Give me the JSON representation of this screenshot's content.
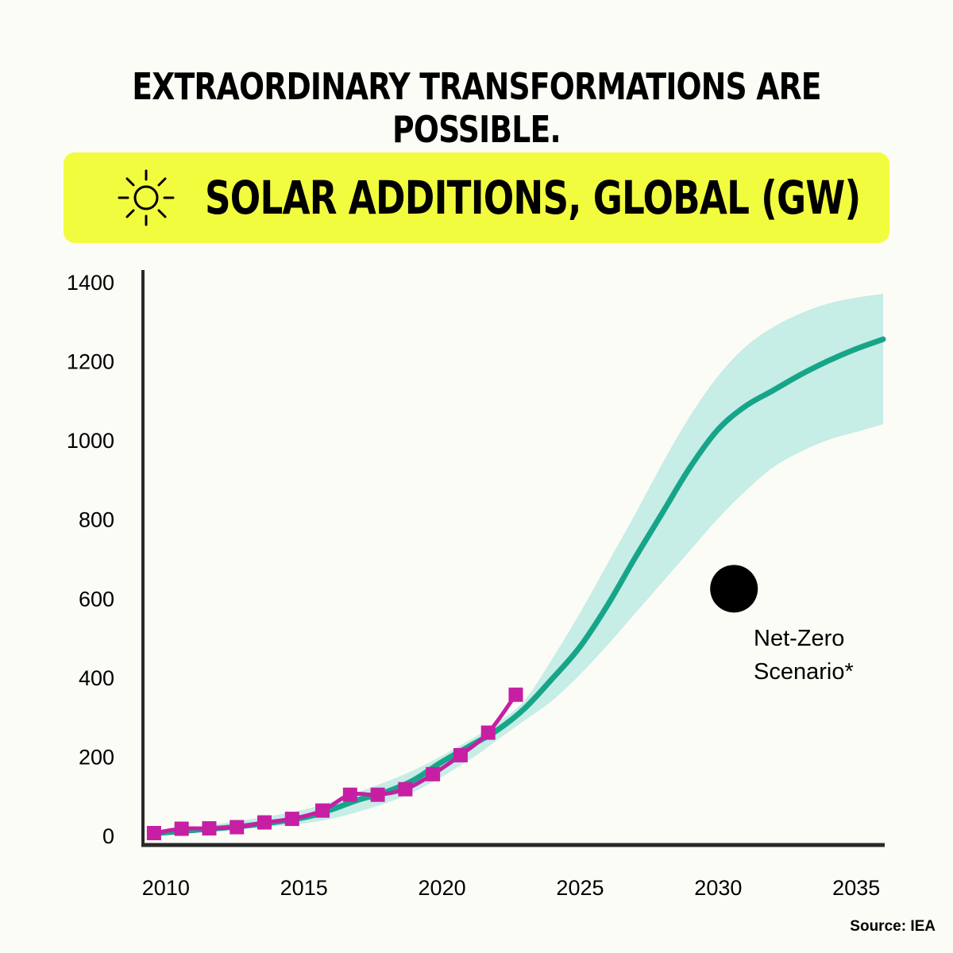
{
  "headline": "EXTRAORDINARY TRANSFORMATIONS ARE POSSIBLE.",
  "banner": {
    "icon": "sun-icon",
    "title": "SOLAR ADDITIONS, GLOBAL (GW)",
    "color": "#f2fc3f"
  },
  "source": "Source: IEA",
  "chart_data": {
    "type": "line",
    "title": "SOLAR ADDITIONS, GLOBAL (GW)",
    "xlabel": "",
    "ylabel": "",
    "xlim": [
      2009.2,
      2036
    ],
    "ylim": [
      0,
      1400
    ],
    "x_ticks": [
      "2010",
      "2015",
      "2020",
      "2025",
      "2030",
      "2035"
    ],
    "y_ticks": [
      "0",
      "200",
      "400",
      "600",
      "800",
      "1000",
      "1200",
      "1400"
    ],
    "grid": false,
    "series": [
      {
        "color": "#c61fa4",
        "marker": "square",
        "x": [
          2009.6,
          2010.6,
          2011.6,
          2012.6,
          2013.6,
          2014.6,
          2015.7,
          2016.7,
          2017.7,
          2018.7,
          2019.7,
          2020.7,
          2021.7,
          2022.7
        ],
        "y": [
          6,
          17,
          18,
          21,
          33,
          42,
          63,
          103,
          103,
          117,
          155,
          203,
          260,
          356
        ]
      },
      {
        "color": "#17a589",
        "x": [
          2009.6,
          2011,
          2013,
          2015,
          2016,
          2017,
          2018,
          2019,
          2020,
          2021,
          2022,
          2023,
          2024,
          2025,
          2026,
          2027,
          2028,
          2029,
          2030,
          2031,
          2032,
          2033,
          2034,
          2035,
          2036
        ],
        "y": [
          5,
          13,
          25,
          45,
          65,
          90,
          110,
          140,
          185,
          225,
          265,
          320,
          395,
          475,
          580,
          700,
          815,
          930,
          1025,
          1085,
          1125,
          1165,
          1200,
          1230,
          1255
        ]
      },
      {
        "color": "#c6ede6",
        "type": "area",
        "x": [
          2009.6,
          2012,
          2015,
          2017,
          2019,
          2021,
          2022,
          2023,
          2024,
          2025,
          2026,
          2027,
          2028,
          2029,
          2030,
          2031,
          2032,
          2033,
          2034,
          2035,
          2036
        ],
        "low": [
          3,
          15,
          30,
          60,
          110,
          190,
          240,
          290,
          340,
          405,
          480,
          560,
          640,
          720,
          800,
          870,
          930,
          970,
          1000,
          1020,
          1040
        ],
        "high": [
          10,
          30,
          65,
          110,
          165,
          240,
          285,
          340,
          445,
          560,
          685,
          810,
          940,
          1060,
          1160,
          1235,
          1285,
          1320,
          1345,
          1360,
          1370
        ]
      },
      {
        "name": "Net-Zero Scenario*",
        "type": "scatter",
        "color": "#000000",
        "x": [
          2030.6
        ],
        "y": [
          624
        ]
      }
    ]
  }
}
